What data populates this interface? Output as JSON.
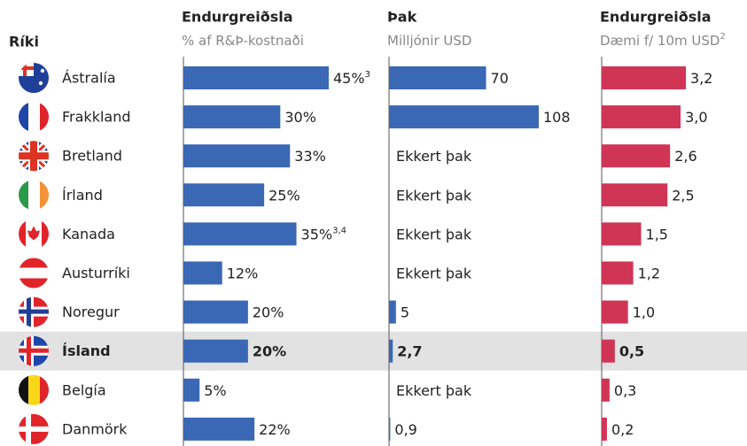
{
  "chart_data": {
    "type": "bar",
    "category_header": "Ríki",
    "categories": [
      "Ástralía",
      "Frakkland",
      "Bretland",
      "Írland",
      "Kanada",
      "Austurríki",
      "Noregur",
      "Ísland",
      "Belgía",
      "Danmörk"
    ],
    "highlight": "Ísland",
    "series": [
      {
        "name": "Endurgreiðsla",
        "subtitle": "% af R&Þ-kostnaði",
        "color": "#3a68b4",
        "values": [
          45,
          30,
          33,
          25,
          35,
          12,
          20,
          20,
          5,
          22
        ],
        "value_labels": [
          "45%",
          "30%",
          "33%",
          "25%",
          "35%",
          "12%",
          "20%",
          "20%",
          "5%",
          "22%"
        ],
        "footnotes": [
          "3",
          null,
          null,
          null,
          "3,4",
          null,
          null,
          null,
          null,
          null
        ]
      },
      {
        "name": "Þak",
        "subtitle": "Milljónir USD",
        "color": "#3a68b4",
        "values": [
          70,
          108,
          null,
          null,
          null,
          null,
          5,
          2.7,
          null,
          0.9
        ],
        "value_labels": [
          "70",
          "108",
          "Ekkert þak",
          "Ekkert þak",
          "Ekkert þak",
          "Ekkert þak",
          "5",
          "2,7",
          "Ekkert þak",
          "0,9"
        ]
      },
      {
        "name": "Endurgreiðsla",
        "subtitle": "Dæmi f/ 10m USD",
        "subtitle_note": "2",
        "color": "#d03556",
        "values": [
          3.2,
          3.0,
          2.6,
          2.5,
          1.5,
          1.2,
          1.0,
          0.5,
          0.3,
          0.2
        ],
        "value_labels": [
          "3,2",
          "3,0",
          "2,6",
          "2,5",
          "1,5",
          "1,2",
          "1,0",
          "0,5",
          "0,3",
          "0,2"
        ]
      }
    ]
  }
}
